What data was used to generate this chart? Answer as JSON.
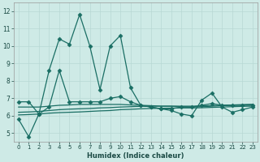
{
  "xlabel": "Humidex (Indice chaleur)",
  "background_color": "#ceeae6",
  "grid_color": "#b8d8d4",
  "line_color": "#1a6e64",
  "xlim": [
    -0.5,
    23.5
  ],
  "ylim": [
    4.5,
    12.5
  ],
  "xticks": [
    0,
    1,
    2,
    3,
    4,
    5,
    6,
    7,
    8,
    9,
    10,
    11,
    12,
    13,
    14,
    15,
    16,
    17,
    18,
    19,
    20,
    21,
    22,
    23
  ],
  "yticks": [
    5,
    6,
    7,
    8,
    9,
    10,
    11,
    12
  ],
  "series": [
    {
      "y": [
        5.8,
        4.8,
        6.1,
        8.6,
        10.4,
        10.1,
        11.8,
        10.0,
        7.5,
        10.0,
        10.6,
        7.6,
        6.6,
        6.5,
        6.4,
        6.3,
        6.1,
        6.0,
        6.9,
        7.3,
        6.5,
        6.2,
        6.35,
        6.5
      ],
      "marker": "D",
      "markersize": 2.5,
      "linewidth": 0.9
    },
    {
      "y": [
        6.8,
        6.8,
        6.1,
        6.5,
        8.6,
        6.8,
        6.8,
        6.8,
        6.8,
        7.0,
        7.1,
        6.8,
        6.6,
        6.5,
        6.4,
        6.4,
        6.5,
        6.5,
        6.6,
        6.7,
        6.6,
        6.6,
        6.6,
        6.6
      ],
      "marker": "D",
      "markersize": 2.5,
      "linewidth": 0.9
    },
    {
      "y": [
        6.5,
        6.5,
        6.5,
        6.55,
        6.6,
        6.62,
        6.65,
        6.65,
        6.65,
        6.65,
        6.65,
        6.62,
        6.6,
        6.58,
        6.55,
        6.55,
        6.52,
        6.5,
        6.52,
        6.55,
        6.58,
        6.6,
        6.62,
        6.65
      ],
      "marker": null,
      "markersize": 0,
      "linewidth": 0.9
    },
    {
      "y": [
        6.2,
        6.22,
        6.25,
        6.3,
        6.35,
        6.38,
        6.4,
        6.42,
        6.45,
        6.47,
        6.5,
        6.52,
        6.54,
        6.55,
        6.55,
        6.55,
        6.55,
        6.55,
        6.56,
        6.58,
        6.6,
        6.62,
        6.64,
        6.65
      ],
      "marker": null,
      "markersize": 0,
      "linewidth": 0.9
    },
    {
      "y": [
        6.05,
        6.07,
        6.1,
        6.15,
        6.18,
        6.2,
        6.22,
        6.25,
        6.28,
        6.3,
        6.35,
        6.37,
        6.4,
        6.42,
        6.43,
        6.44,
        6.45,
        6.45,
        6.46,
        6.48,
        6.5,
        6.52,
        6.54,
        6.55
      ],
      "marker": null,
      "markersize": 0,
      "linewidth": 0.9
    }
  ]
}
